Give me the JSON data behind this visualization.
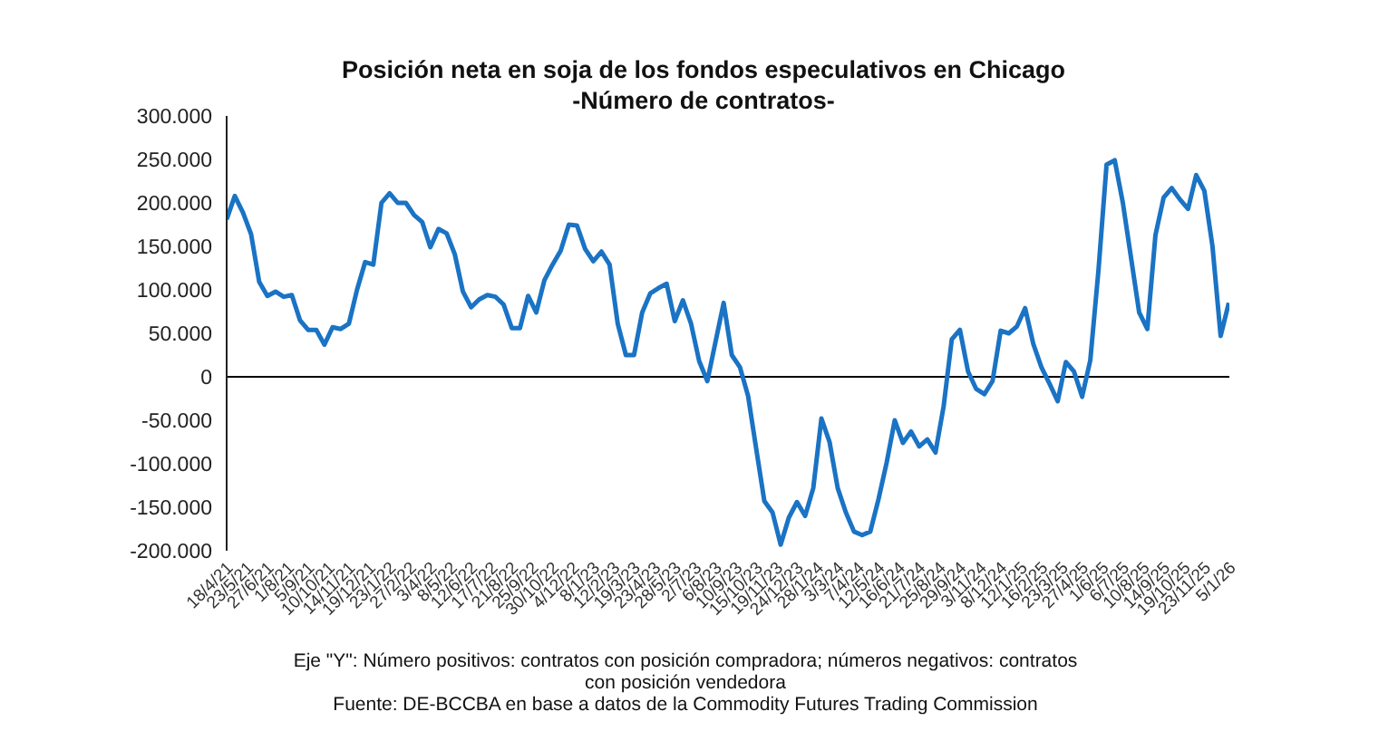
{
  "chart_data": {
    "type": "line",
    "title": "Posición neta en soja de los fondos especulativos en Chicago",
    "subtitle": "-Número de contratos-",
    "annotations": [
      "Eje \"Y\": Número positivos: contratos con posición compradora; números negativos: contratos con posición vendedora",
      "Fuente: DE-BCCBA en base a datos de la Commodity Futures Trading Commission"
    ],
    "x": [
      "2021-04-18",
      "2021-05-02",
      "2021-05-16",
      "2021-05-30",
      "2021-06-13",
      "2021-06-27",
      "2021-07-11",
      "2021-07-25",
      "2021-08-08",
      "2021-08-22",
      "2021-09-05",
      "2021-09-19",
      "2021-10-03",
      "2021-10-17",
      "2021-10-31",
      "2021-11-14",
      "2021-11-28",
      "2021-12-12",
      "2021-12-26",
      "2022-01-09",
      "2022-01-23",
      "2022-02-06",
      "2022-02-20",
      "2022-03-06",
      "2022-03-20",
      "2022-04-03",
      "2022-04-17",
      "2022-05-01",
      "2022-05-15",
      "2022-05-29",
      "2022-06-12",
      "2022-06-26",
      "2022-07-10",
      "2022-07-24",
      "2022-08-07",
      "2022-08-21",
      "2022-09-04",
      "2022-09-18",
      "2022-10-02",
      "2022-10-16",
      "2022-10-30",
      "2022-11-13",
      "2022-11-27",
      "2022-12-11",
      "2022-12-25",
      "2023-01-08",
      "2023-01-22",
      "2023-02-05",
      "2023-02-19",
      "2023-03-05",
      "2023-03-19",
      "2023-04-02",
      "2023-04-16",
      "2023-04-30",
      "2023-05-14",
      "2023-05-28",
      "2023-06-11",
      "2023-06-25",
      "2023-07-09",
      "2023-07-23",
      "2023-08-06",
      "2023-08-20",
      "2023-09-03",
      "2023-09-17",
      "2023-10-01",
      "2023-10-15",
      "2023-10-29",
      "2023-11-12",
      "2023-11-26",
      "2023-12-10",
      "2023-12-24",
      "2024-01-07",
      "2024-01-21",
      "2024-02-04",
      "2024-02-18",
      "2024-03-03",
      "2024-03-17",
      "2024-03-31",
      "2024-04-14",
      "2024-04-28",
      "2024-05-12",
      "2024-05-26",
      "2024-06-09",
      "2024-06-23",
      "2024-07-07",
      "2024-07-21",
      "2024-08-04",
      "2024-08-18",
      "2024-09-01",
      "2024-09-15",
      "2024-09-29",
      "2024-10-13",
      "2024-10-27",
      "2024-11-10",
      "2024-11-24",
      "2024-12-08",
      "2024-12-22",
      "2025-01-05",
      "2025-01-19",
      "2025-02-02",
      "2025-02-16",
      "2025-03-02",
      "2025-03-16",
      "2025-03-30",
      "2025-04-13",
      "2025-04-27",
      "2025-05-11",
      "2025-05-25",
      "2025-06-08",
      "2025-06-22",
      "2025-07-06",
      "2025-07-20",
      "2025-08-03",
      "2025-08-17",
      "2025-08-31",
      "2025-09-14",
      "2025-09-28",
      "2025-10-12",
      "2025-10-26",
      "2025-11-09",
      "2025-11-23",
      "2025-12-07",
      "2025-12-21",
      "2026-01-04"
    ],
    "series": [
      {
        "color": "#1a73c4",
        "values": [
          181000,
          208000,
          189000,
          164000,
          109000,
          93000,
          98000,
          92000,
          94000,
          65000,
          54000,
          54000,
          37000,
          57000,
          55000,
          61000,
          100000,
          132000,
          129000,
          200000,
          211000,
          200000,
          200000,
          186000,
          178000,
          149000,
          170000,
          165000,
          141000,
          98000,
          80000,
          89000,
          94000,
          92000,
          83000,
          56000,
          56000,
          93000,
          74000,
          111000,
          129000,
          145000,
          175000,
          174000,
          147000,
          133000,
          144000,
          129000,
          61000,
          25000,
          25000,
          74000,
          96000,
          102000,
          107000,
          64000,
          88000,
          61000,
          18000,
          -5000,
          40000,
          85000,
          25000,
          11000,
          -22000,
          -83000,
          -143000,
          -156000,
          -193000,
          -162000,
          -144000,
          -160000,
          -128000,
          -48000,
          -75000,
          -128000,
          -156000,
          -178000,
          -182000,
          -178000,
          -141000,
          -99000,
          -50000,
          -76000,
          -63000,
          -80000,
          -72000,
          -87000,
          -34000,
          43000,
          54000,
          6000,
          -14000,
          -20000,
          -5000,
          53000,
          50000,
          58000,
          79000,
          38000,
          11000,
          -8000,
          -28000,
          17000,
          6000,
          -23000,
          19000,
          122000,
          244000,
          249000,
          200000,
          137000,
          74000,
          55000,
          163000,
          206000,
          217000,
          204000,
          193000,
          232000,
          214000,
          150000,
          47000,
          85000
        ]
      }
    ],
    "xlim": [
      "2021-04-18",
      "2026-01-05"
    ],
    "xticks": [
      {
        "value": "2021-04-18",
        "label": "18/4/21"
      },
      {
        "value": "2021-05-23",
        "label": "23/5/21"
      },
      {
        "value": "2021-06-27",
        "label": "27/6/21"
      },
      {
        "value": "2021-08-01",
        "label": "1/8/21"
      },
      {
        "value": "2021-09-05",
        "label": "5/9/21"
      },
      {
        "value": "2021-10-10",
        "label": "10/10/21"
      },
      {
        "value": "2021-11-14",
        "label": "14/11/21"
      },
      {
        "value": "2021-12-19",
        "label": "19/12/21"
      },
      {
        "value": "2022-01-23",
        "label": "23/1/22"
      },
      {
        "value": "2022-02-27",
        "label": "27/2/22"
      },
      {
        "value": "2022-04-03",
        "label": "3/4/22"
      },
      {
        "value": "2022-05-08",
        "label": "8/5/22"
      },
      {
        "value": "2022-06-12",
        "label": "12/6/22"
      },
      {
        "value": "2022-07-17",
        "label": "17/7/22"
      },
      {
        "value": "2022-08-21",
        "label": "21/8/22"
      },
      {
        "value": "2022-09-25",
        "label": "25/9/22"
      },
      {
        "value": "2022-10-30",
        "label": "30/10/22"
      },
      {
        "value": "2022-12-04",
        "label": "4/12/22"
      },
      {
        "value": "2023-01-08",
        "label": "8/1/23"
      },
      {
        "value": "2023-02-12",
        "label": "12/2/23"
      },
      {
        "value": "2023-03-19",
        "label": "19/3/23"
      },
      {
        "value": "2023-04-23",
        "label": "23/4/23"
      },
      {
        "value": "2023-05-28",
        "label": "28/5/23"
      },
      {
        "value": "2023-07-02",
        "label": "2/7/23"
      },
      {
        "value": "2023-08-06",
        "label": "6/8/23"
      },
      {
        "value": "2023-09-10",
        "label": "10/9/23"
      },
      {
        "value": "2023-10-15",
        "label": "15/10/23"
      },
      {
        "value": "2023-11-19",
        "label": "19/11/23"
      },
      {
        "value": "2023-12-24",
        "label": "24/12/23"
      },
      {
        "value": "2024-01-28",
        "label": "28/1/24"
      },
      {
        "value": "2024-03-03",
        "label": "3/3/24"
      },
      {
        "value": "2024-04-07",
        "label": "7/4/24"
      },
      {
        "value": "2024-05-12",
        "label": "12/5/24"
      },
      {
        "value": "2024-06-16",
        "label": "16/6/24"
      },
      {
        "value": "2024-07-21",
        "label": "21/7/24"
      },
      {
        "value": "2024-08-25",
        "label": "25/8/24"
      },
      {
        "value": "2024-09-29",
        "label": "29/9/24"
      },
      {
        "value": "2024-11-03",
        "label": "3/11/24"
      },
      {
        "value": "2024-12-08",
        "label": "8/12/24"
      },
      {
        "value": "2025-01-12",
        "label": "12/1/25"
      },
      {
        "value": "2025-02-16",
        "label": "16/2/25"
      },
      {
        "value": "2025-03-23",
        "label": "23/3/25"
      },
      {
        "value": "2025-04-27",
        "label": "27/4/25"
      },
      {
        "value": "2025-06-01",
        "label": "1/6/25"
      },
      {
        "value": "2025-07-06",
        "label": "6/7/25"
      },
      {
        "value": "2025-08-10",
        "label": "10/8/25"
      },
      {
        "value": "2025-09-14",
        "label": "14/9/25"
      },
      {
        "value": "2025-10-19",
        "label": "19/10/25"
      },
      {
        "value": "2025-11-23",
        "label": "23/11/25"
      },
      {
        "value": "2026-01-05",
        "label": "5/1/26"
      }
    ],
    "ylim": [
      -200000,
      300000
    ],
    "yticks": [
      {
        "value": -200000,
        "label": "-200.000"
      },
      {
        "value": -150000,
        "label": "-150.000"
      },
      {
        "value": -100000,
        "label": "-100.000"
      },
      {
        "value": -50000,
        "label": "-50.000"
      },
      0,
      {
        "value": 50000,
        "label": "50.000"
      },
      {
        "value": 100000,
        "label": "100.000"
      },
      {
        "value": 150000,
        "label": "150.000"
      },
      {
        "value": 200000,
        "label": "200.000"
      },
      {
        "value": 250000,
        "label": "250.000"
      },
      {
        "value": 300000,
        "label": "300.000"
      }
    ],
    "ref_lines": [
      {
        "axis": "y",
        "value": 0,
        "color": "#000000"
      }
    ],
    "grid": false,
    "legend": false,
    "marker": "none",
    "line_style": "solid"
  }
}
